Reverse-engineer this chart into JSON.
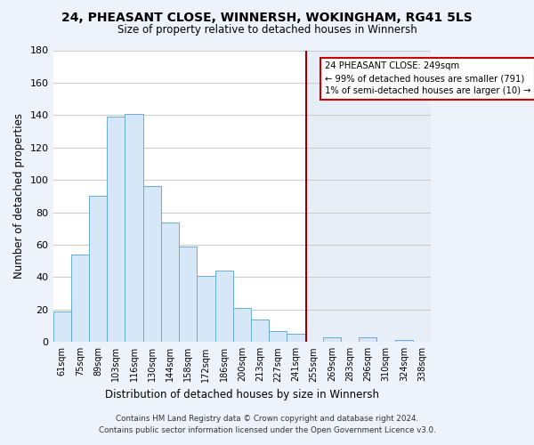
{
  "title": "24, PHEASANT CLOSE, WINNERSH, WOKINGHAM, RG41 5LS",
  "subtitle": "Size of property relative to detached houses in Winnersh",
  "xlabel": "Distribution of detached houses by size in Winnersh",
  "ylabel": "Number of detached properties",
  "bar_labels": [
    "61sqm",
    "75sqm",
    "89sqm",
    "103sqm",
    "116sqm",
    "130sqm",
    "144sqm",
    "158sqm",
    "172sqm",
    "186sqm",
    "200sqm",
    "213sqm",
    "227sqm",
    "241sqm",
    "255sqm",
    "269sqm",
    "283sqm",
    "296sqm",
    "310sqm",
    "324sqm",
    "338sqm"
  ],
  "bar_heights": [
    19,
    54,
    90,
    139,
    141,
    96,
    74,
    59,
    41,
    44,
    21,
    14,
    7,
    5,
    0,
    3,
    0,
    3,
    0,
    1,
    0
  ],
  "bar_color_left": "#d6e8f7",
  "bar_color_right": "#ccdff0",
  "bar_edge_color": "#6aaad4",
  "background_color_left": "#ffffff",
  "background_color_right": "#e8eef8",
  "fig_background": "#eef2fa",
  "grid_color": "#cccccc",
  "ylim": [
    0,
    180
  ],
  "yticks": [
    0,
    20,
    40,
    60,
    80,
    100,
    120,
    140,
    160,
    180
  ],
  "vline_x_index": 13.57,
  "vline_color": "#990000",
  "annotation_title": "24 PHEASANT CLOSE: 249sqm",
  "annotation_line1": "← 99% of detached houses are smaller (791)",
  "annotation_line2": "1% of semi-detached houses are larger (10) →",
  "annotation_box_color": "#ffffff",
  "annotation_box_edge": "#cc0000",
  "footer_line1": "Contains HM Land Registry data © Crown copyright and database right 2024.",
  "footer_line2": "Contains public sector information licensed under the Open Government Licence v3.0."
}
